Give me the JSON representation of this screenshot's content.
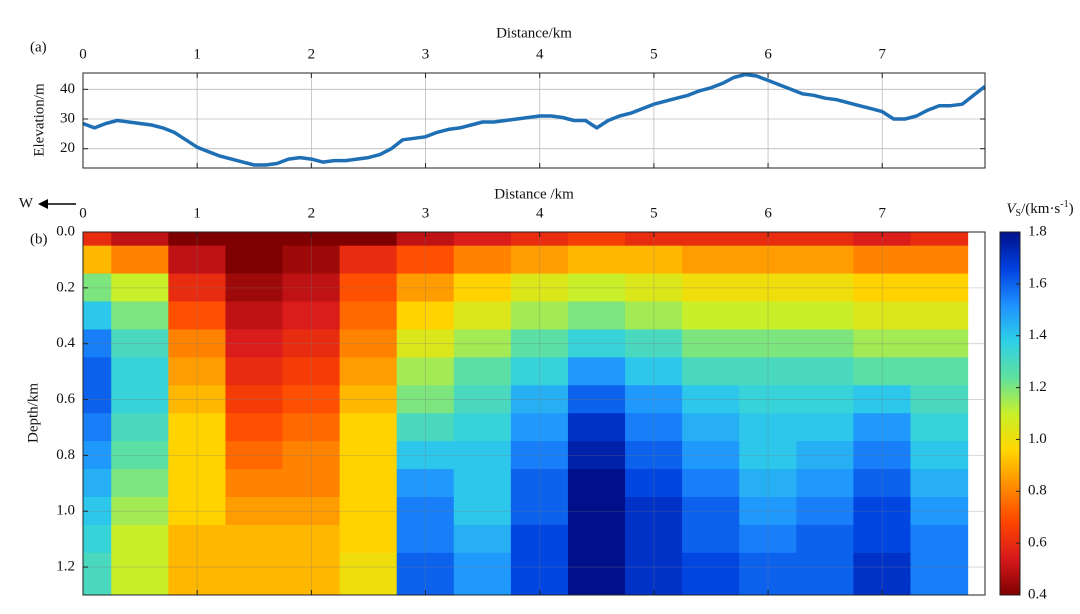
{
  "chart_data": [
    {
      "type": "line",
      "label": "(a)",
      "xlabel": "Distance/km",
      "ylabel": "Elevation/m",
      "x": [
        0,
        0.1,
        0.2,
        0.3,
        0.4,
        0.5,
        0.6,
        0.7,
        0.8,
        0.9,
        1.0,
        1.1,
        1.2,
        1.3,
        1.4,
        1.5,
        1.6,
        1.7,
        1.8,
        1.9,
        2.0,
        2.1,
        2.2,
        2.3,
        2.4,
        2.5,
        2.6,
        2.7,
        2.8,
        2.9,
        3.0,
        3.1,
        3.2,
        3.3,
        3.4,
        3.5,
        3.6,
        3.7,
        3.8,
        3.9,
        4.0,
        4.1,
        4.2,
        4.3,
        4.4,
        4.5,
        4.6,
        4.7,
        4.8,
        4.9,
        5.0,
        5.1,
        5.2,
        5.3,
        5.4,
        5.5,
        5.6,
        5.7,
        5.8,
        5.9,
        6.0,
        6.1,
        6.2,
        6.3,
        6.4,
        6.5,
        6.6,
        6.7,
        6.8,
        6.9,
        7.0,
        7.1,
        7.2,
        7.3,
        7.4,
        7.5,
        7.6,
        7.7,
        7.8,
        7.9
      ],
      "series": [
        {
          "color": "#1f6fb5",
          "values": [
            28.5,
            27,
            28.5,
            29.5,
            29,
            28.5,
            28,
            27,
            25.5,
            23,
            20.5,
            19,
            17.5,
            16.5,
            15.5,
            14.5,
            14.5,
            15,
            16.5,
            17,
            16.5,
            15.5,
            16,
            16,
            16.5,
            17,
            18,
            20,
            23,
            23.5,
            24,
            25.5,
            26.5,
            27,
            28,
            29,
            29,
            29.5,
            30,
            30.5,
            31,
            31,
            30.5,
            29.5,
            29.5,
            27,
            29.5,
            31,
            32,
            33.5,
            35,
            36,
            37,
            38,
            39.5,
            40.5,
            42,
            44,
            45,
            44.5,
            43,
            41.5,
            40,
            38.5,
            38,
            37,
            36.5,
            35.5,
            34.5,
            33.5,
            32.5,
            30,
            30,
            31,
            33,
            34.5,
            34.5,
            35,
            38,
            41
          ]
        }
      ],
      "xlim": [
        0,
        7.9
      ],
      "ylim": [
        13.5,
        45.5
      ],
      "xticks": [
        0,
        1,
        2,
        3,
        4,
        5,
        6,
        7
      ],
      "yticks": [
        20,
        30,
        40
      ],
      "grid": true
    },
    {
      "type": "heatmap",
      "label": "(b)",
      "direction": "W",
      "xlabel": "Distance /km",
      "ylabel": "Depth/km",
      "x": [
        0,
        0.5,
        1,
        1.5,
        2,
        2.5,
        3,
        3.5,
        4,
        4.5,
        5,
        5.5,
        6,
        6.5,
        7,
        7.5
      ],
      "y": [
        0,
        0.1,
        0.2,
        0.3,
        0.4,
        0.5,
        0.6,
        0.7,
        0.8,
        0.9,
        1.0,
        1.1,
        1.2,
        1.3
      ],
      "z": [
        [
          0.6,
          0.5,
          0.4,
          0.3,
          0.35,
          0.4,
          0.5,
          0.55,
          0.6,
          0.65,
          0.6,
          0.6,
          0.6,
          0.6,
          0.55,
          0.6
        ],
        [
          0.9,
          0.8,
          0.5,
          0.4,
          0.45,
          0.6,
          0.7,
          0.8,
          0.85,
          0.9,
          0.9,
          0.85,
          0.85,
          0.85,
          0.8,
          0.8
        ],
        [
          1.2,
          1.1,
          0.6,
          0.45,
          0.5,
          0.7,
          0.85,
          0.95,
          1.05,
          1.1,
          1.05,
          1.0,
          1.0,
          1.0,
          0.95,
          0.95
        ],
        [
          1.4,
          1.2,
          0.7,
          0.5,
          0.55,
          0.75,
          0.95,
          1.05,
          1.15,
          1.2,
          1.15,
          1.1,
          1.1,
          1.1,
          1.05,
          1.05
        ],
        [
          1.55,
          1.3,
          0.8,
          0.55,
          0.6,
          0.8,
          1.05,
          1.15,
          1.25,
          1.35,
          1.3,
          1.2,
          1.2,
          1.2,
          1.15,
          1.15
        ],
        [
          1.6,
          1.35,
          0.85,
          0.6,
          0.65,
          0.85,
          1.15,
          1.25,
          1.35,
          1.5,
          1.4,
          1.3,
          1.3,
          1.3,
          1.25,
          1.25
        ],
        [
          1.6,
          1.35,
          0.9,
          0.65,
          0.7,
          0.9,
          1.2,
          1.3,
          1.45,
          1.6,
          1.5,
          1.4,
          1.35,
          1.35,
          1.4,
          1.3
        ],
        [
          1.55,
          1.3,
          0.95,
          0.7,
          0.75,
          0.95,
          1.3,
          1.35,
          1.5,
          1.7,
          1.55,
          1.45,
          1.4,
          1.4,
          1.5,
          1.35
        ],
        [
          1.5,
          1.25,
          0.95,
          0.75,
          0.8,
          0.95,
          1.4,
          1.4,
          1.55,
          1.75,
          1.6,
          1.5,
          1.4,
          1.45,
          1.55,
          1.4
        ],
        [
          1.45,
          1.2,
          0.95,
          0.8,
          0.8,
          0.95,
          1.5,
          1.4,
          1.6,
          1.8,
          1.65,
          1.55,
          1.45,
          1.5,
          1.6,
          1.45
        ],
        [
          1.4,
          1.15,
          0.95,
          0.85,
          0.85,
          0.95,
          1.55,
          1.4,
          1.6,
          1.8,
          1.7,
          1.6,
          1.5,
          1.55,
          1.65,
          1.5
        ],
        [
          1.35,
          1.1,
          0.9,
          0.9,
          0.9,
          0.95,
          1.55,
          1.45,
          1.65,
          1.8,
          1.7,
          1.6,
          1.55,
          1.6,
          1.65,
          1.55
        ],
        [
          1.3,
          1.1,
          0.9,
          0.9,
          0.9,
          1.0,
          1.6,
          1.5,
          1.65,
          1.8,
          1.7,
          1.65,
          1.6,
          1.6,
          1.7,
          1.55
        ],
        [
          1.3,
          1.1,
          0.9,
          0.9,
          0.9,
          1.0,
          1.6,
          1.5,
          1.65,
          1.8,
          1.7,
          1.65,
          1.6,
          1.6,
          1.7,
          1.55
        ]
      ],
      "xlim": [
        0,
        7.9
      ],
      "ylim": [
        0,
        1.3
      ],
      "y_inverted": true,
      "xticks": [
        0,
        1,
        2,
        3,
        4,
        5,
        6,
        7
      ],
      "yticks": [
        {
          "value": 0,
          "label": "0.0"
        },
        0.2,
        0.4,
        0.6,
        0.8,
        {
          "value": 1,
          "label": "1.0"
        },
        1.2
      ],
      "grid": true,
      "colorbar": {
        "label": {
          "symbol": "V",
          "subscript": "S",
          "unit": "/(km·s",
          "superscript": "-1",
          "close": ")"
        },
        "lim": [
          0.4,
          1.8
        ],
        "ticks": [
          0.4,
          0.6,
          0.8,
          {
            "value": 1,
            "label": "1.0"
          },
          1.2,
          1.4,
          1.6,
          1.8
        ],
        "colors": [
          "#7f0000",
          "#d7191c",
          "#ff4500",
          "#ff8c00",
          "#ffd700",
          "#c8f02a",
          "#5fe0a0",
          "#2ed0e8",
          "#1e90ff",
          "#0040e0",
          "#00108a"
        ]
      }
    }
  ]
}
